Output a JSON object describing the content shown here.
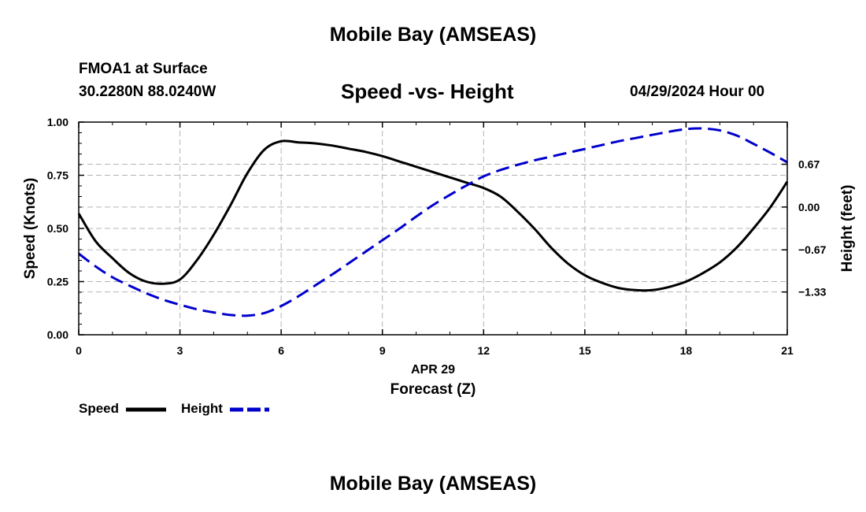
{
  "header": {
    "title": "Mobile Bay (AMSEAS)",
    "station": "FMOA1 at Surface",
    "coords": "30.2280N  88.0240W",
    "subtitle": "Speed -vs- Height",
    "datetime": "04/29/2024 Hour 00"
  },
  "footer": {
    "title": "Mobile Bay (AMSEAS)"
  },
  "legend": [
    {
      "label": "Speed",
      "color": "#000000"
    },
    {
      "label": "Height",
      "color": "#0000cc"
    }
  ],
  "chart_data": {
    "type": "line",
    "title": "Speed -vs- Height",
    "xlabel": "Forecast (Z)",
    "xdate": "APR 29",
    "ylabel": "Speed (Knots)",
    "y2label": "Height (feet)",
    "xlim": [
      0,
      21
    ],
    "ylim": [
      0,
      1
    ],
    "y2lim": [
      -2.0,
      1.33
    ],
    "xticks": [
      0,
      3,
      6,
      9,
      12,
      15,
      18,
      21
    ],
    "xtick_labels": [
      "0",
      "3",
      "6",
      "9",
      "12",
      "15",
      "18",
      "21"
    ],
    "yticks": [
      0.0,
      0.25,
      0.5,
      0.75,
      1.0
    ],
    "ytick_labels": [
      "0.00",
      "0.25",
      "0.50",
      "0.75",
      "1.00"
    ],
    "y2ticks": [
      0.67,
      0.0,
      -0.67,
      -1.33
    ],
    "y2tick_labels": [
      "0.67",
      "0.00",
      "−0.67",
      "−1.33"
    ],
    "grid": true,
    "series": [
      {
        "name": "Speed",
        "axis": "left",
        "color": "#000000",
        "style": "solid",
        "x": [
          0,
          0.5,
          1,
          1.5,
          2,
          2.5,
          3,
          3.5,
          4,
          4.5,
          5,
          5.5,
          6,
          6.5,
          7,
          7.5,
          8,
          8.5,
          9,
          9.5,
          10,
          10.5,
          11,
          11.5,
          12,
          12.5,
          13,
          13.5,
          14,
          14.5,
          15,
          15.5,
          16,
          16.5,
          17,
          17.5,
          18,
          18.5,
          19,
          19.5,
          20,
          20.5,
          21
        ],
        "values": [
          0.57,
          0.44,
          0.36,
          0.29,
          0.25,
          0.24,
          0.26,
          0.35,
          0.47,
          0.61,
          0.76,
          0.87,
          0.91,
          0.905,
          0.9,
          0.89,
          0.875,
          0.86,
          0.84,
          0.815,
          0.79,
          0.765,
          0.74,
          0.715,
          0.69,
          0.65,
          0.58,
          0.5,
          0.41,
          0.335,
          0.28,
          0.245,
          0.22,
          0.21,
          0.21,
          0.225,
          0.25,
          0.29,
          0.34,
          0.41,
          0.5,
          0.6,
          0.72
        ]
      },
      {
        "name": "Height",
        "axis": "right",
        "color": "#0000cc",
        "style": "dashed",
        "x": [
          0,
          0.5,
          1,
          1.5,
          2,
          2.5,
          3,
          3.5,
          4,
          4.5,
          5,
          5.5,
          6,
          6.5,
          7,
          7.5,
          8,
          8.5,
          9,
          9.5,
          10,
          10.5,
          11,
          11.5,
          12,
          12.5,
          13,
          13.5,
          14,
          14.5,
          15,
          15.5,
          16,
          16.5,
          17,
          17.5,
          18,
          18.5,
          19,
          19.5,
          20,
          20.5,
          21
        ],
        "values": [
          -0.73,
          -0.93,
          -1.1,
          -1.23,
          -1.35,
          -1.45,
          -1.53,
          -1.6,
          -1.65,
          -1.69,
          -1.7,
          -1.66,
          -1.55,
          -1.4,
          -1.23,
          -1.06,
          -0.88,
          -0.7,
          -0.52,
          -0.34,
          -0.15,
          0.03,
          0.19,
          0.34,
          0.48,
          0.58,
          0.66,
          0.73,
          0.79,
          0.85,
          0.91,
          0.97,
          1.03,
          1.08,
          1.13,
          1.18,
          1.22,
          1.23,
          1.2,
          1.12,
          0.99,
          0.85,
          0.7
        ]
      }
    ]
  }
}
